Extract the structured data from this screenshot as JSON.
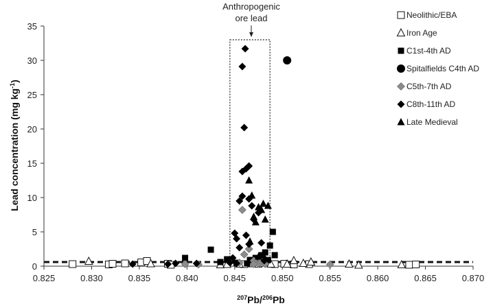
{
  "chart_data": {
    "type": "scatter",
    "title": "",
    "xlabel": {
      "pre_sup": "207",
      "a": "Pb/",
      "mid_sup": "206",
      "b": "Pb"
    },
    "ylabel": {
      "base": "Lead concentration (mg kg",
      "sup": "-1",
      "close": ")"
    },
    "xlim": [
      0.825,
      0.87
    ],
    "ylim": [
      0,
      35
    ],
    "x_ticks": [
      "0.825",
      "0.830",
      "0.835",
      "0.840",
      "0.845",
      "0.850",
      "0.855",
      "0.860",
      "0.865",
      "0.870"
    ],
    "y_ticks": [
      "0",
      "5",
      "10",
      "15",
      "20",
      "25",
      "30",
      "35"
    ],
    "annotation": {
      "line1": "Anthropogenic",
      "line2": "ore lead",
      "box_x": [
        0.8445,
        0.8487
      ],
      "box_y": [
        0,
        33
      ]
    },
    "threshold_line_y": 0.6,
    "legend_position": "right",
    "series": [
      {
        "name": "Neolithic/EBA",
        "marker": "square-open",
        "points": [
          [
            0.828,
            0.3
          ],
          [
            0.8318,
            0.25
          ],
          [
            0.8322,
            0.35
          ],
          [
            0.8335,
            0.4
          ],
          [
            0.8352,
            0.55
          ],
          [
            0.8358,
            0.75
          ],
          [
            0.838,
            0.35
          ],
          [
            0.8383,
            0.2
          ],
          [
            0.846,
            0.3
          ],
          [
            0.8475,
            0.35
          ],
          [
            0.8492,
            0.3
          ],
          [
            0.8502,
            0.35
          ],
          [
            0.8512,
            0.25
          ],
          [
            0.8528,
            0.3
          ],
          [
            0.8633,
            0.2
          ],
          [
            0.864,
            0.25
          ]
        ]
      },
      {
        "name": "Iron Age",
        "marker": "triangle-open",
        "points": [
          [
            0.8297,
            0.7
          ],
          [
            0.8362,
            0.35
          ],
          [
            0.8435,
            0.2
          ],
          [
            0.8442,
            0.25
          ],
          [
            0.8455,
            0.3
          ],
          [
            0.8468,
            0.35
          ],
          [
            0.8478,
            0.45
          ],
          [
            0.8488,
            0.3
          ],
          [
            0.8505,
            0.3
          ],
          [
            0.8512,
            0.8
          ],
          [
            0.8522,
            0.4
          ],
          [
            0.853,
            0.6
          ],
          [
            0.857,
            0.3
          ],
          [
            0.858,
            0.15
          ],
          [
            0.8625,
            0.2
          ]
        ]
      },
      {
        "name": "C1st-4th AD",
        "marker": "square-filled",
        "points": [
          [
            0.8398,
            1.2
          ],
          [
            0.8425,
            2.4
          ],
          [
            0.8435,
            0.6
          ],
          [
            0.8442,
            1.0
          ],
          [
            0.8452,
            0.5
          ],
          [
            0.8466,
            0.9
          ],
          [
            0.8472,
            1.2
          ],
          [
            0.8478,
            1.6
          ],
          [
            0.8482,
            2.0
          ],
          [
            0.8487,
            3.0
          ],
          [
            0.849,
            5.0
          ],
          [
            0.8492,
            1.6
          ],
          [
            0.8485,
            0.9
          ],
          [
            0.847,
            0.5
          ],
          [
            0.8463,
            0.4
          ]
        ]
      },
      {
        "name": "Spitalfields C4th AD",
        "marker": "circle-filled",
        "points": [
          [
            0.8505,
            30.0
          ]
        ]
      },
      {
        "name": "C5th-7th AD",
        "marker": "diamond-grey",
        "points": [
          [
            0.8398,
            0.3
          ],
          [
            0.8412,
            0.25
          ],
          [
            0.8455,
            0.5
          ],
          [
            0.846,
            1.7
          ],
          [
            0.8465,
            2.5
          ],
          [
            0.847,
            0.8
          ],
          [
            0.8475,
            0.4
          ],
          [
            0.8458,
            8.2
          ],
          [
            0.847,
            0.3
          ],
          [
            0.8478,
            0.7
          ],
          [
            0.8482,
            0.3
          ],
          [
            0.855,
            0.25
          ]
        ]
      },
      {
        "name": "C8th-11th AD",
        "marker": "diamond-filled",
        "points": [
          [
            0.8343,
            0.3
          ],
          [
            0.838,
            0.3
          ],
          [
            0.8388,
            0.4
          ],
          [
            0.841,
            0.4
          ],
          [
            0.845,
            4.8
          ],
          [
            0.8452,
            4.0
          ],
          [
            0.8455,
            2.7
          ],
          [
            0.8455,
            9.5
          ],
          [
            0.8458,
            13.8
          ],
          [
            0.8458,
            10.2
          ],
          [
            0.846,
            20.2
          ],
          [
            0.8458,
            29.1
          ],
          [
            0.8461,
            31.7
          ],
          [
            0.8462,
            14.2
          ],
          [
            0.8465,
            14.6
          ],
          [
            0.8465,
            9.8
          ],
          [
            0.8468,
            8.8
          ],
          [
            0.847,
            6.8
          ],
          [
            0.8475,
            7.8
          ],
          [
            0.8478,
            3.4
          ],
          [
            0.8481,
            0.8
          ],
          [
            0.8465,
            3.2
          ],
          [
            0.8462,
            4.5
          ],
          [
            0.8448,
            1.2
          ],
          [
            0.8445,
            0.5
          ],
          [
            0.8452,
            0.4
          ]
        ]
      },
      {
        "name": "Late Medieval",
        "marker": "triangle-filled",
        "points": [
          [
            0.8465,
            12.5
          ],
          [
            0.8468,
            10.3
          ],
          [
            0.8475,
            8.6
          ],
          [
            0.8478,
            8.2
          ],
          [
            0.848,
            9.1
          ],
          [
            0.8485,
            8.8
          ],
          [
            0.8482,
            6.8
          ],
          [
            0.847,
            7.2
          ],
          [
            0.8472,
            6.4
          ],
          [
            0.8475,
            1.4
          ],
          [
            0.848,
            1.6
          ],
          [
            0.8466,
            3.6
          ]
        ]
      }
    ]
  }
}
